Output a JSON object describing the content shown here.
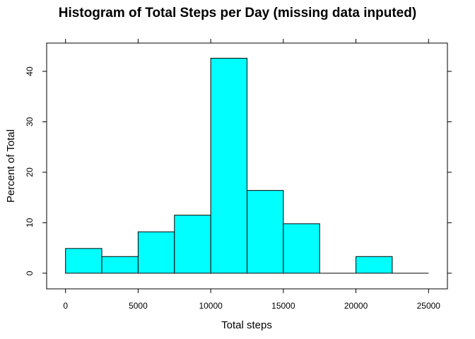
{
  "chart_data": {
    "type": "bar",
    "title": "Histogram of Total Steps per Day (missing data inputed)",
    "xlabel": "Total steps",
    "ylabel": "Percent of Total",
    "bin_edges": [
      0,
      2500,
      5000,
      7500,
      10000,
      12500,
      15000,
      17500,
      20000,
      22500,
      25000
    ],
    "values": [
      4.9,
      3.3,
      8.2,
      11.5,
      42.6,
      16.4,
      9.8,
      0,
      3.3,
      0
    ],
    "xlim": [
      -1300,
      26300
    ],
    "ylim": [
      -3.1,
      45.6
    ],
    "x_ticks": [
      0,
      5000,
      10000,
      15000,
      20000,
      25000
    ],
    "y_ticks": [
      0,
      10,
      20,
      30,
      40
    ],
    "bar_color": "#00ffff",
    "grid": false
  }
}
